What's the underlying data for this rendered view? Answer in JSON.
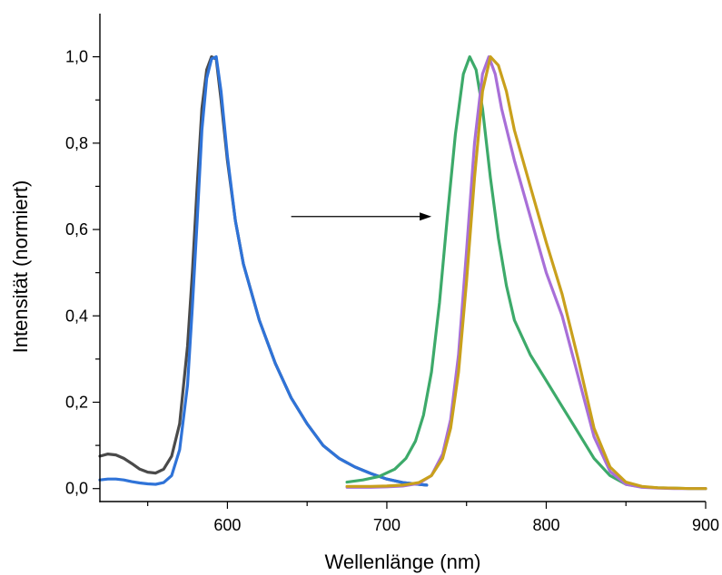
{
  "chart_data": {
    "type": "line",
    "title": "",
    "xlabel": "Wellenlänge (nm)",
    "ylabel": "Intensität (normiert)",
    "xlim": [
      520,
      900
    ],
    "ylim": [
      -0.03,
      1.1
    ],
    "x_ticks": [
      600,
      700,
      800,
      900
    ],
    "x_tick_labels": [
      "600",
      "700",
      "800",
      "900"
    ],
    "y_ticks": [
      0.0,
      0.2,
      0.4,
      0.6,
      0.8,
      1.0
    ],
    "y_tick_labels": [
      "0,0",
      "0,2",
      "0,4",
      "0,6",
      "0,8",
      "1,0"
    ],
    "grid": false,
    "legend": "none",
    "annotation": {
      "type": "arrow",
      "from": [
        640,
        0.63
      ],
      "to": [
        728,
        0.63
      ]
    },
    "series": [
      {
        "color": "#4a4a4a",
        "x": [
          520,
          525,
          530,
          535,
          540,
          545,
          550,
          555,
          560,
          565,
          570,
          575,
          578,
          581,
          584,
          587,
          590,
          593,
          596,
          600,
          605,
          610,
          620,
          630,
          640,
          650,
          660,
          670,
          680,
          690,
          700,
          710,
          720,
          725
        ],
        "y": [
          0.075,
          0.08,
          0.078,
          0.07,
          0.058,
          0.045,
          0.038,
          0.036,
          0.045,
          0.075,
          0.15,
          0.33,
          0.5,
          0.7,
          0.88,
          0.97,
          1.0,
          0.995,
          0.9,
          0.76,
          0.62,
          0.52,
          0.39,
          0.29,
          0.21,
          0.15,
          0.1,
          0.07,
          0.05,
          0.035,
          0.022,
          0.014,
          0.01,
          0.008
        ]
      },
      {
        "color": "#2f73d8",
        "x": [
          520,
          525,
          530,
          535,
          540,
          545,
          550,
          555,
          560,
          565,
          570,
          575,
          578,
          581,
          584,
          587,
          590,
          593,
          596,
          600,
          605,
          610,
          620,
          630,
          640,
          650,
          660,
          670,
          680,
          690,
          700,
          710,
          720,
          725
        ],
        "y": [
          0.02,
          0.022,
          0.022,
          0.02,
          0.016,
          0.013,
          0.011,
          0.01,
          0.014,
          0.03,
          0.09,
          0.24,
          0.42,
          0.62,
          0.83,
          0.95,
          0.995,
          1.0,
          0.92,
          0.77,
          0.62,
          0.52,
          0.39,
          0.29,
          0.21,
          0.15,
          0.1,
          0.07,
          0.05,
          0.035,
          0.022,
          0.014,
          0.01,
          0.008
        ]
      },
      {
        "color": "#3daa6a",
        "x": [
          675,
          685,
          695,
          705,
          712,
          718,
          723,
          728,
          733,
          738,
          743,
          748,
          752,
          756,
          760,
          765,
          770,
          775,
          780,
          790,
          800,
          810,
          820,
          830,
          840,
          850,
          860,
          870,
          880,
          890,
          900
        ],
        "y": [
          0.015,
          0.02,
          0.028,
          0.045,
          0.07,
          0.11,
          0.17,
          0.27,
          0.43,
          0.63,
          0.82,
          0.96,
          1.0,
          0.97,
          0.88,
          0.72,
          0.58,
          0.47,
          0.39,
          0.31,
          0.25,
          0.19,
          0.13,
          0.07,
          0.03,
          0.01,
          0.004,
          0.002,
          0.001,
          0.0,
          0.0
        ]
      },
      {
        "color": "#a86fd8",
        "x": [
          675,
          690,
          700,
          710,
          720,
          728,
          735,
          740,
          745,
          750,
          755,
          760,
          764,
          768,
          772,
          776,
          780,
          790,
          800,
          810,
          820,
          830,
          840,
          850,
          860,
          870,
          880,
          890,
          900
        ],
        "y": [
          0.003,
          0.003,
          0.004,
          0.006,
          0.012,
          0.03,
          0.08,
          0.16,
          0.31,
          0.55,
          0.8,
          0.96,
          1.0,
          0.96,
          0.88,
          0.82,
          0.76,
          0.63,
          0.5,
          0.4,
          0.26,
          0.12,
          0.04,
          0.01,
          0.003,
          0.001,
          0.0,
          0.0,
          0.0
        ]
      },
      {
        "color": "#c9a01c",
        "x": [
          675,
          690,
          700,
          710,
          720,
          728,
          735,
          740,
          745,
          750,
          755,
          760,
          765,
          770,
          775,
          780,
          790,
          800,
          810,
          820,
          830,
          840,
          850,
          860,
          870,
          880,
          890,
          900
        ],
        "y": [
          0.005,
          0.005,
          0.006,
          0.008,
          0.014,
          0.03,
          0.07,
          0.14,
          0.27,
          0.48,
          0.72,
          0.92,
          1.0,
          0.98,
          0.92,
          0.83,
          0.7,
          0.57,
          0.45,
          0.3,
          0.14,
          0.05,
          0.015,
          0.005,
          0.002,
          0.001,
          0.0,
          0.0
        ]
      }
    ]
  }
}
